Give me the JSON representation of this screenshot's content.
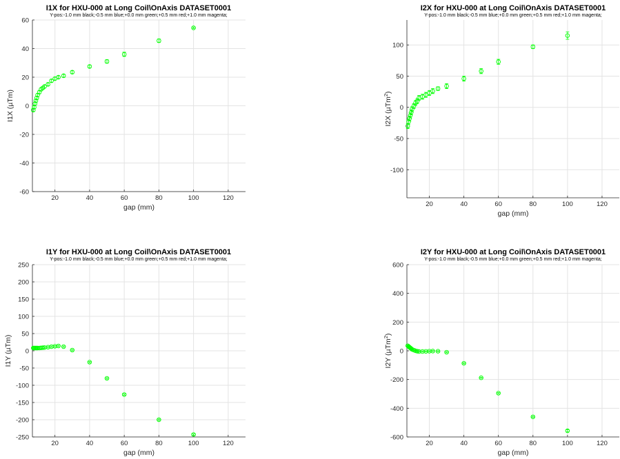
{
  "figure": {
    "background": "#ffffff"
  },
  "colors": {
    "marker": "#00ff00",
    "grid": "#e3e3e3",
    "axis": "#262626"
  },
  "chart_data": [
    {
      "type": "scatter",
      "title": "I1X for HXU-000 at Long Coil\\OnAxis DATASET0001",
      "subtitle": "Y-pos:-1.0 mm black;-0.5 mm blue;+0.0 mm green;+0.5 mm red;+1.0 mm magenta;",
      "xlabel": "gap (mm)",
      "ylabel": "I1X (µTm)",
      "xlim": [
        7,
        130
      ],
      "ylim": [
        -60,
        60
      ],
      "xticks": [
        20,
        40,
        60,
        80,
        100,
        120
      ],
      "xtick_labels": [
        "20",
        "40",
        "60",
        "80",
        "100",
        "120"
      ],
      "yticks": [
        -60,
        -40,
        -20,
        0,
        20,
        40,
        60
      ],
      "ytick_labels": [
        "-60",
        "-40",
        "-20",
        "0",
        "20",
        "40",
        "60"
      ],
      "grid": true,
      "marker": "circle-with-errorbar",
      "series": [
        {
          "color": "#00ff00",
          "x": [
            7.5,
            8,
            8.5,
            9,
            9.5,
            10,
            11,
            12,
            13,
            14,
            16,
            18,
            20,
            22,
            25,
            30,
            40,
            50,
            60,
            80,
            100
          ],
          "y": [
            -3,
            -1,
            1.5,
            3.5,
            5.5,
            7.5,
            9.5,
            11.5,
            12.5,
            13.5,
            15,
            17.5,
            19,
            20,
            21,
            23.5,
            27.5,
            31,
            36,
            45.5,
            54.5
          ],
          "err": [
            1,
            1,
            1,
            1,
            1,
            1,
            1,
            1,
            1,
            1,
            1,
            1,
            1,
            1,
            1,
            1,
            1,
            1.2,
            1.5,
            1.2,
            0.5
          ]
        }
      ]
    },
    {
      "type": "scatter",
      "title": "I2X for HXU-000 at Long Coil\\OnAxis DATASET0001",
      "subtitle": "Y-pos:-1.0 mm black;-0.5 mm blue;+0.0 mm green;+0.5 mm red;+1.0 mm magenta;",
      "xlabel": "gap (mm)",
      "ylabel": "I2X (µTm",
      "ylabel_superscript": "2",
      "ylabel_close": ")",
      "xlim": [
        7,
        130
      ],
      "ylim": [
        -145,
        140
      ],
      "xticks": [
        20,
        40,
        60,
        80,
        100,
        120
      ],
      "xtick_labels": [
        "20",
        "40",
        "60",
        "80",
        "100",
        "120"
      ],
      "yticks": [
        -100,
        -50,
        0,
        50,
        100
      ],
      "ytick_labels": [
        "-100",
        "-50",
        "0",
        "50",
        "100"
      ],
      "grid": true,
      "marker": "circle-with-errorbar",
      "series": [
        {
          "color": "#00ff00",
          "x": [
            7.5,
            8,
            8.5,
            9,
            9.5,
            10,
            11,
            12,
            13,
            14,
            16,
            18,
            20,
            22,
            25,
            30,
            40,
            50,
            60,
            80,
            100
          ],
          "y": [
            -30,
            -23,
            -18,
            -13,
            -8,
            -3,
            2,
            7,
            10,
            15,
            17,
            20,
            23,
            26,
            30,
            34,
            46,
            58,
            73,
            97,
            115
          ],
          "err": [
            4,
            4,
            4,
            4,
            4,
            4,
            4,
            4,
            4,
            4,
            4,
            4,
            4,
            4,
            3,
            4,
            4,
            4,
            4,
            3,
            6
          ]
        }
      ]
    },
    {
      "type": "scatter",
      "title": "I1Y for HXU-000 at Long Coil\\OnAxis DATASET0001",
      "subtitle": "Y-pos:-1.0 mm black;-0.5 mm blue;+0.0 mm green;+0.5 mm red;+1.0 mm magenta;",
      "xlabel": "gap (mm)",
      "ylabel": "I1Y (µTm)",
      "xlim": [
        7,
        130
      ],
      "ylim": [
        -250,
        250
      ],
      "xticks": [
        20,
        40,
        60,
        80,
        100,
        120
      ],
      "xtick_labels": [
        "20",
        "40",
        "60",
        "80",
        "100",
        "120"
      ],
      "yticks": [
        -250,
        -200,
        -150,
        -100,
        -50,
        0,
        50,
        100,
        150,
        200,
        250
      ],
      "ytick_labels": [
        "-250",
        "-200",
        "-150",
        "-100",
        "-50",
        "0",
        "50",
        "100",
        "150",
        "200",
        "250"
      ],
      "grid": true,
      "marker": "circle-with-errorbar",
      "series": [
        {
          "color": "#00ff00",
          "x": [
            7.5,
            8,
            8.5,
            9,
            9.5,
            10,
            11,
            12,
            13,
            14,
            16,
            18,
            20,
            22,
            25,
            30,
            40,
            50,
            60,
            80,
            100
          ],
          "y": [
            8,
            8,
            8,
            8,
            8,
            8,
            8,
            8.5,
            9,
            9.5,
            10.5,
            12,
            13,
            14,
            12,
            2,
            -33,
            -80,
            -127,
            -200,
            -243
          ],
          "err": [
            2,
            2,
            2,
            2,
            2,
            2,
            2,
            2,
            2,
            2,
            2,
            2,
            2,
            2,
            2,
            2,
            2,
            2,
            2,
            2,
            2
          ]
        }
      ]
    },
    {
      "type": "scatter",
      "title": "I2Y for HXU-000 at Long Coil\\OnAxis DATASET0001",
      "subtitle": "Y-pos:-1.0 mm black;-0.5 mm blue;+0.0 mm green;+0.5 mm red;+1.0 mm magenta;",
      "xlabel": "gap (mm)",
      "ylabel": "I2Y (µTm",
      "ylabel_superscript": "2",
      "ylabel_close": ")",
      "xlim": [
        7,
        130
      ],
      "ylim": [
        -600,
        600
      ],
      "xticks": [
        20,
        40,
        60,
        80,
        100,
        120
      ],
      "xtick_labels": [
        "20",
        "40",
        "60",
        "80",
        "100",
        "120"
      ],
      "yticks": [
        -600,
        -400,
        -200,
        0,
        200,
        400,
        600
      ],
      "ytick_labels": [
        "-600",
        "-400",
        "-200",
        "0",
        "200",
        "400",
        "600"
      ],
      "grid": true,
      "marker": "circle-with-errorbar",
      "series": [
        {
          "color": "#00ff00",
          "x": [
            7.5,
            8,
            8.5,
            9,
            9.5,
            10,
            11,
            12,
            13,
            14,
            16,
            18,
            20,
            22,
            25,
            30,
            40,
            50,
            60,
            80,
            100
          ],
          "y": [
            35,
            30,
            25,
            20,
            15,
            10,
            5,
            0,
            -3,
            -5,
            -5,
            -4,
            -3,
            -2,
            -3,
            -10,
            -87,
            -188,
            -295,
            -460,
            -557
          ],
          "err": [
            4,
            4,
            4,
            4,
            4,
            4,
            4,
            4,
            4,
            4,
            4,
            4,
            4,
            4,
            4,
            4,
            4,
            4,
            4,
            4,
            8
          ]
        }
      ]
    }
  ]
}
